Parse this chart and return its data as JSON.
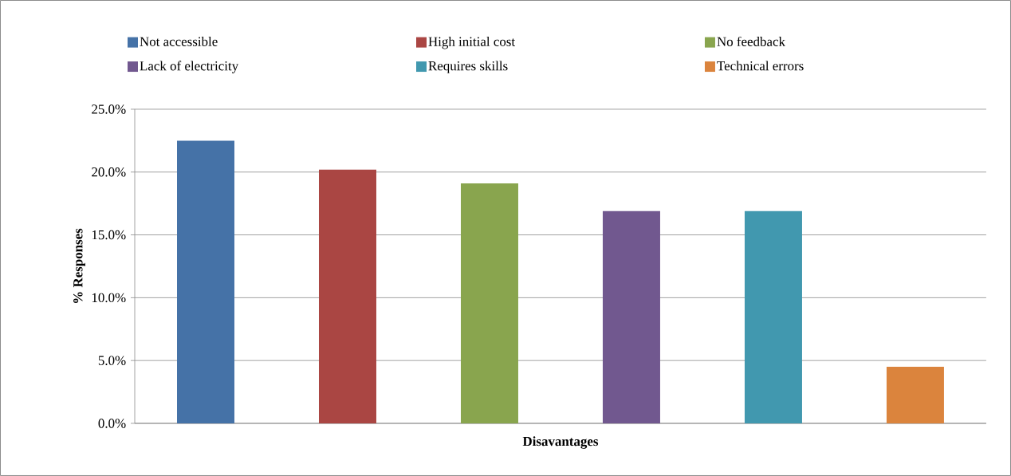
{
  "chart_data": {
    "type": "bar",
    "xlabel": "Disavantages",
    "ylabel": "% Responses",
    "categories": [
      null
    ],
    "series": [
      {
        "name": "Not accessible",
        "color": "#4572a7",
        "values": [
          22.5
        ]
      },
      {
        "name": "High initial cost",
        "color": "#aa4643",
        "values": [
          20.2
        ]
      },
      {
        "name": "No feedback",
        "color": "#89a54e",
        "values": [
          19.1
        ]
      },
      {
        "name": "Lack of electricity",
        "color": "#71588f",
        "values": [
          16.9
        ]
      },
      {
        "name": "Requires skills",
        "color": "#4198af",
        "values": [
          16.9
        ]
      },
      {
        "name": "Technical errors",
        "color": "#db843d",
        "values": [
          4.5
        ]
      }
    ],
    "ylim": [
      0,
      25
    ],
    "yticks": [
      {
        "value": 0,
        "label": "0.0%"
      },
      {
        "value": 5,
        "label": "5.0%"
      },
      {
        "value": 10,
        "label": "10.0%"
      },
      {
        "value": 15,
        "label": "15.0%"
      },
      {
        "value": 20,
        "label": "20.0%"
      },
      {
        "value": 25,
        "label": "25.0%"
      }
    ],
    "grid": "y",
    "legend": "top",
    "tick_labels": "y"
  }
}
